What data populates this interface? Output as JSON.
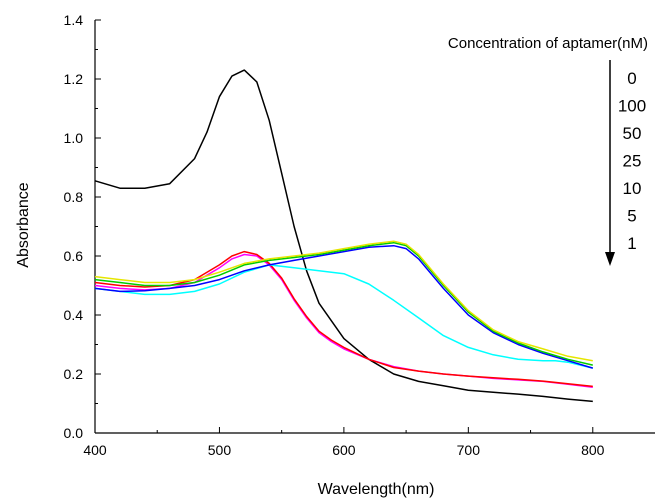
{
  "chart_data": {
    "type": "line",
    "xlabel": "Wavelength(nm)",
    "ylabel": "Absorbance",
    "xlim": [
      400,
      850
    ],
    "ylim": [
      0.0,
      1.4
    ],
    "xticks": [
      400,
      500,
      600,
      700,
      800
    ],
    "xtick_labels": [
      "400",
      "500",
      "600",
      "700",
      "800"
    ],
    "yticks": [
      0.0,
      0.2,
      0.4,
      0.6,
      0.8,
      1.0,
      1.2,
      1.4
    ],
    "ytick_labels": [
      "0.0",
      "0.2",
      "0.4",
      "0.6",
      "0.8",
      "1.0",
      "1.2",
      "1.4"
    ],
    "legend": {
      "title": "Concentration of aptamer(nM)",
      "values": [
        "0",
        "100",
        "50",
        "25",
        "10",
        "5",
        "1"
      ],
      "placement": "top-right"
    },
    "series": [
      {
        "color": "#000000",
        "x": [
          400,
          420,
          440,
          460,
          480,
          490,
          500,
          510,
          520,
          530,
          540,
          550,
          560,
          570,
          580,
          600,
          620,
          640,
          660,
          680,
          700,
          720,
          740,
          760,
          780,
          800
        ],
        "y": [
          0.855,
          0.83,
          0.83,
          0.845,
          0.93,
          1.02,
          1.14,
          1.21,
          1.23,
          1.19,
          1.06,
          0.88,
          0.7,
          0.55,
          0.44,
          0.32,
          0.25,
          0.2,
          0.175,
          0.16,
          0.145,
          0.138,
          0.132,
          0.124,
          0.115,
          0.107
        ]
      },
      {
        "color": "#ff00ff",
        "x": [
          400,
          420,
          440,
          460,
          480,
          500,
          510,
          520,
          530,
          540,
          550,
          560,
          570,
          580,
          590,
          600,
          620,
          640,
          660,
          680,
          700,
          720,
          740,
          760,
          780,
          800
        ],
        "y": [
          0.5,
          0.49,
          0.485,
          0.49,
          0.51,
          0.56,
          0.59,
          0.605,
          0.6,
          0.57,
          0.52,
          0.45,
          0.39,
          0.34,
          0.31,
          0.285,
          0.25,
          0.225,
          0.21,
          0.2,
          0.193,
          0.185,
          0.18,
          0.175,
          0.165,
          0.155
        ]
      },
      {
        "color": "#ff0000",
        "x": [
          400,
          420,
          440,
          460,
          480,
          500,
          510,
          520,
          530,
          540,
          550,
          560,
          570,
          580,
          590,
          600,
          620,
          640,
          660,
          680,
          700,
          720,
          740,
          760,
          780,
          800
        ],
        "y": [
          0.51,
          0.5,
          0.495,
          0.5,
          0.52,
          0.57,
          0.6,
          0.615,
          0.605,
          0.575,
          0.525,
          0.455,
          0.395,
          0.345,
          0.315,
          0.29,
          0.25,
          0.222,
          0.21,
          0.2,
          0.193,
          0.187,
          0.182,
          0.176,
          0.167,
          0.158
        ]
      },
      {
        "color": "#00ffff",
        "x": [
          400,
          420,
          440,
          460,
          480,
          500,
          520,
          540,
          560,
          580,
          600,
          620,
          640,
          660,
          680,
          700,
          720,
          740,
          760,
          770,
          780,
          790,
          800
        ],
        "y": [
          0.49,
          0.48,
          0.47,
          0.47,
          0.48,
          0.505,
          0.545,
          0.57,
          0.56,
          0.55,
          0.54,
          0.505,
          0.45,
          0.39,
          0.33,
          0.29,
          0.265,
          0.25,
          0.245,
          0.245,
          0.24,
          0.23,
          0.22
        ]
      },
      {
        "color": "#0000ff",
        "x": [
          400,
          420,
          440,
          460,
          480,
          500,
          520,
          540,
          560,
          580,
          600,
          620,
          640,
          650,
          660,
          680,
          700,
          720,
          740,
          760,
          780,
          800
        ],
        "y": [
          0.49,
          0.48,
          0.482,
          0.49,
          0.5,
          0.52,
          0.55,
          0.57,
          0.585,
          0.6,
          0.615,
          0.63,
          0.635,
          0.625,
          0.59,
          0.49,
          0.4,
          0.34,
          0.3,
          0.27,
          0.245,
          0.22
        ]
      },
      {
        "color": "#00cc00",
        "x": [
          400,
          420,
          440,
          460,
          480,
          500,
          520,
          540,
          560,
          580,
          600,
          620,
          640,
          650,
          660,
          680,
          700,
          720,
          740,
          760,
          780,
          800
        ],
        "y": [
          0.52,
          0.51,
          0.5,
          0.5,
          0.51,
          0.535,
          0.57,
          0.585,
          0.595,
          0.605,
          0.62,
          0.635,
          0.645,
          0.635,
          0.6,
          0.5,
          0.41,
          0.345,
          0.305,
          0.275,
          0.25,
          0.23
        ]
      },
      {
        "color": "#e6e600",
        "x": [
          400,
          420,
          440,
          460,
          480,
          500,
          520,
          540,
          560,
          580,
          600,
          620,
          640,
          650,
          660,
          680,
          700,
          720,
          740,
          760,
          780,
          800
        ],
        "y": [
          0.53,
          0.52,
          0.51,
          0.51,
          0.52,
          0.545,
          0.575,
          0.59,
          0.6,
          0.61,
          0.625,
          0.64,
          0.65,
          0.64,
          0.605,
          0.505,
          0.415,
          0.35,
          0.31,
          0.285,
          0.26,
          0.245
        ]
      }
    ]
  }
}
